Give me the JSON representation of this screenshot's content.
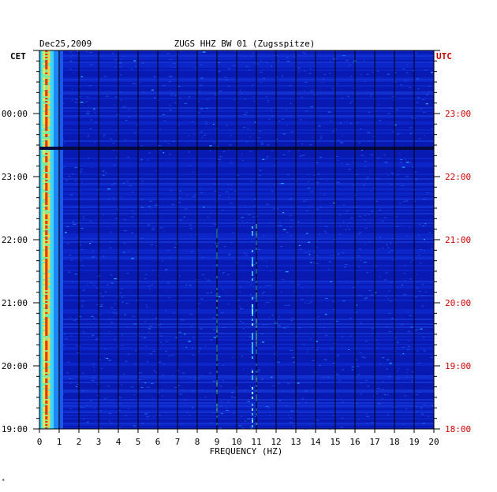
{
  "chart_data": {
    "type": "heatmap",
    "title_left": "Dec25,2009",
    "title": "ZUGS HHZ BW 01 (Zugsspitze)",
    "left_axis_label": "CET",
    "right_axis_label": "UTC",
    "xlabel": "FREQUENCY (HZ)",
    "xlim": [
      0,
      20
    ],
    "x_ticks": [
      "0",
      "1",
      "2",
      "3",
      "4",
      "5",
      "6",
      "7",
      "8",
      "9",
      "10",
      "11",
      "12",
      "13",
      "14",
      "15",
      "16",
      "17",
      "18",
      "19",
      "20"
    ],
    "left_time_ticks": [
      "00:00",
      "23:00",
      "22:00",
      "21:00",
      "20:00",
      "19:00"
    ],
    "right_time_ticks": [
      "23:00",
      "22:00",
      "21:00",
      "20:00",
      "19:00",
      "18:00"
    ],
    "time_range_cet": [
      "19:00",
      "01:00"
    ],
    "colors": {
      "background": "#0a1fbe",
      "utc_text": "#cc0000",
      "grid": "#000000"
    },
    "features": [
      {
        "label": "microseism band",
        "freq_hz": [
          0,
          1
        ],
        "intensity": "high"
      },
      {
        "label": "line",
        "freq_hz": 9.0,
        "intensity": "medium"
      },
      {
        "label": "line",
        "freq_hz": 10.8,
        "intensity": "medium"
      },
      {
        "label": "line",
        "freq_hz": 11.0,
        "intensity": "medium"
      }
    ]
  },
  "footer_mark": "*"
}
